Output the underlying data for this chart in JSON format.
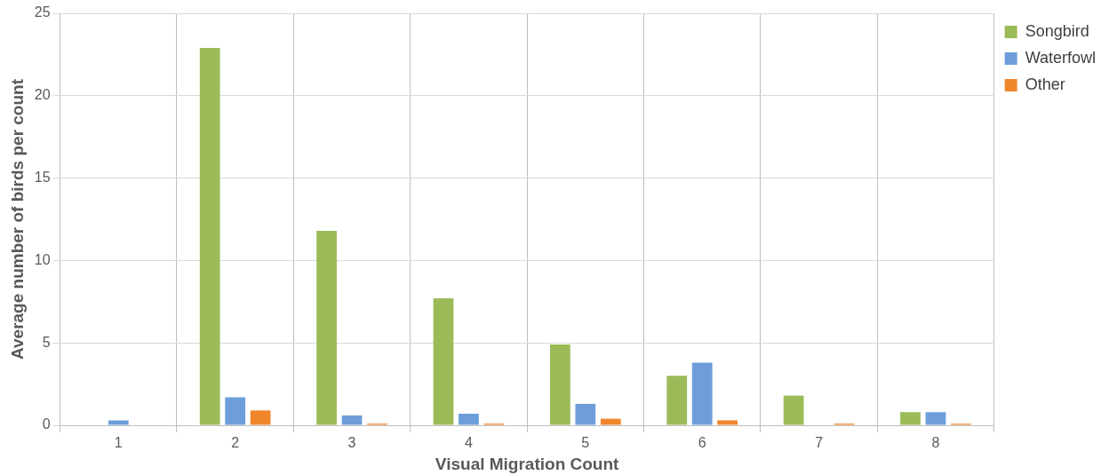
{
  "chart_data": {
    "type": "bar",
    "xlabel": "Visual Migration Count",
    "ylabel": "Average number of birds per count",
    "categories": [
      "1",
      "2",
      "3",
      "4",
      "5",
      "6",
      "7",
      "8"
    ],
    "series": [
      {
        "name": "Songbird",
        "color": "#9bbb59",
        "values": [
          0,
          22.9,
          11.8,
          7.7,
          4.9,
          3.0,
          1.8,
          0.8
        ]
      },
      {
        "name": "Waterfowl",
        "color": "#6d9eda",
        "values": [
          0.3,
          1.7,
          0.6,
          0.7,
          1.3,
          3.8,
          0,
          0.8
        ]
      },
      {
        "name": "Other",
        "color": "#f0862c",
        "values": [
          0,
          0.9,
          0.1,
          0.1,
          0.4,
          0.3,
          0.1,
          0.1
        ]
      }
    ],
    "ylim": [
      0,
      25
    ],
    "yticks": [
      0,
      5,
      10,
      15,
      20,
      25
    ],
    "grid": true,
    "legend": "top right"
  }
}
